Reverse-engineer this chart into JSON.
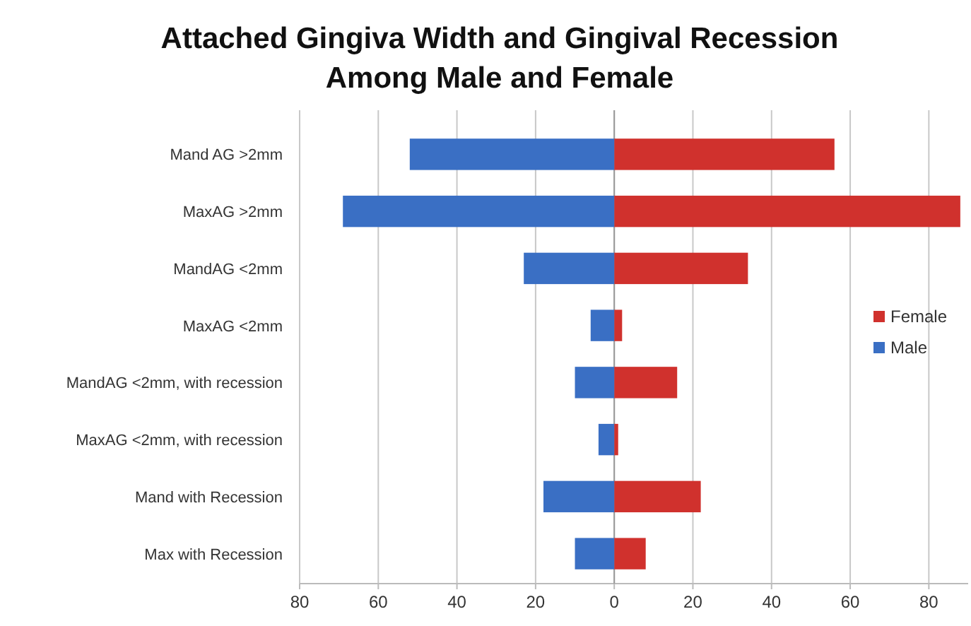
{
  "chart_data": {
    "type": "bar",
    "title": "Attached Gingiva Width and Gingival Recession\nAmong Male and Female",
    "orientation": "horizontal",
    "stacked": true,
    "categories": [
      "Mand AG >2mm",
      "MaxAG >2mm",
      "MandAG <2mm",
      "MaxAG <2mm",
      "MandAG <2mm, with recession",
      "MaxAG <2mm, with recession",
      "Mand with Recession",
      "Max with Recession"
    ],
    "series": [
      {
        "name": "Female",
        "color": "#d0312d",
        "values": [
          56,
          88,
          34,
          2,
          16,
          1,
          22,
          8
        ]
      },
      {
        "name": "Male",
        "color": "#3a6fc4",
        "values": [
          -52,
          -69,
          -23,
          -6,
          -10,
          -4,
          -18,
          -10
        ]
      }
    ],
    "xlim": [
      -80,
      90
    ],
    "xticks": [
      {
        "value": -80,
        "label": "80"
      },
      {
        "value": -60,
        "label": "60"
      },
      {
        "value": -40,
        "label": "40"
      },
      {
        "value": -20,
        "label": "20"
      },
      0,
      20,
      40,
      60,
      80
    ],
    "grid": "x",
    "legend": "right"
  }
}
